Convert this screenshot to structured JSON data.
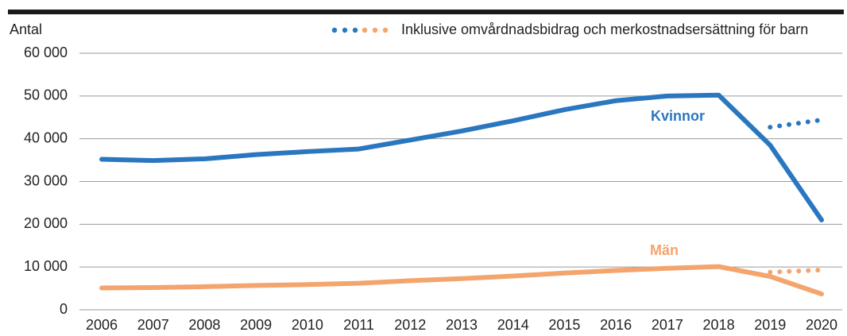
{
  "chart_data": {
    "type": "line",
    "y_label": "Antal",
    "legend": "Inklusive omvårdnadsbidrag och merkostnadsersättning för barn",
    "categories": [
      "2006",
      "2007",
      "2008",
      "2009",
      "2010",
      "2011",
      "2012",
      "2013",
      "2014",
      "2015",
      "2016",
      "2017",
      "2018",
      "2019",
      "2020"
    ],
    "series": [
      {
        "name": "Kvinnor",
        "color": "#2a77c0",
        "values": [
          35200,
          34900,
          35300,
          36300,
          37000,
          37600,
          39700,
          41800,
          44200,
          46800,
          48900,
          50000,
          50200,
          38500,
          21000
        ],
        "inclusive_values": [
          null,
          null,
          null,
          null,
          null,
          null,
          null,
          null,
          null,
          null,
          null,
          null,
          null,
          42700,
          44400
        ]
      },
      {
        "name": "Män",
        "color": "#f4a46d",
        "values": [
          5100,
          5200,
          5400,
          5700,
          5900,
          6200,
          6800,
          7300,
          7900,
          8600,
          9200,
          9700,
          10100,
          7800,
          3700
        ],
        "inclusive_values": [
          null,
          null,
          null,
          null,
          null,
          null,
          null,
          null,
          null,
          null,
          null,
          null,
          null,
          8800,
          9300
        ]
      }
    ],
    "ylim": [
      0,
      60000
    ],
    "yticks": [
      0,
      {
        "value": 10000,
        "label": "10 000"
      },
      {
        "value": 20000,
        "label": "20 000"
      },
      {
        "value": 30000,
        "label": "30 000"
      },
      {
        "value": 40000,
        "label": "40 000"
      },
      {
        "value": 50000,
        "label": "50 000"
      },
      {
        "value": 60000,
        "label": "60 000"
      }
    ],
    "grid": true
  }
}
